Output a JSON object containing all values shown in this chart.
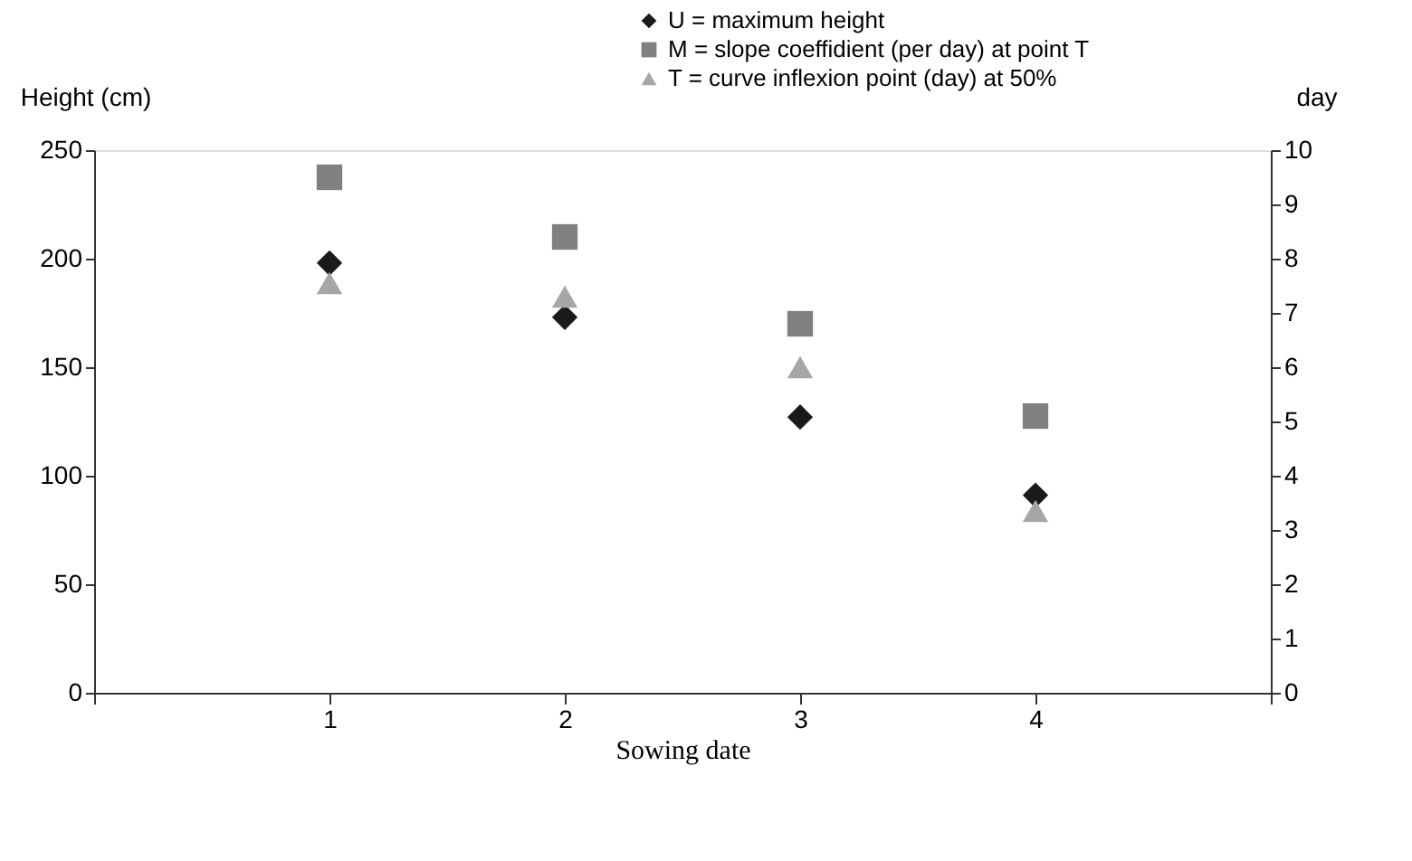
{
  "chart_data": {
    "type": "scatter",
    "xlabel": "Sowing date",
    "ylabel": "Height (cm)",
    "y2label": "day",
    "x": [
      1,
      2,
      3,
      4
    ],
    "series": [
      {
        "name": "U = maximum height",
        "color": "#1a1a1a",
        "marker": "diamond",
        "values": [
          198,
          173,
          127,
          91
        ]
      },
      {
        "name": "M = slope coeffidient (per day) at point T",
        "color": "#808080",
        "marker": "square",
        "axis": "y2",
        "values": [
          9.5,
          8.4,
          6.8,
          5.1
        ]
      },
      {
        "name": "T = curve inflexion point (day) at 50%",
        "color": "#a6a6a6",
        "marker": "triangle",
        "axis": "y2",
        "values": [
          7.55,
          7.3,
          6.0,
          3.35
        ]
      }
    ],
    "xlim": [
      0,
      5
    ],
    "xticks": [
      {
        "value": 0,
        "label": null
      },
      1,
      2,
      3,
      4,
      {
        "value": 5,
        "label": null
      }
    ],
    "ylim": [
      0,
      250
    ],
    "yticks": [
      0,
      50,
      100,
      150,
      200,
      250
    ],
    "y2lim": [
      0,
      10
    ],
    "y2ticks": [
      0,
      1,
      2,
      3,
      4,
      5,
      6,
      7,
      8,
      9,
      10
    ],
    "grid": false,
    "legend": "top right"
  }
}
